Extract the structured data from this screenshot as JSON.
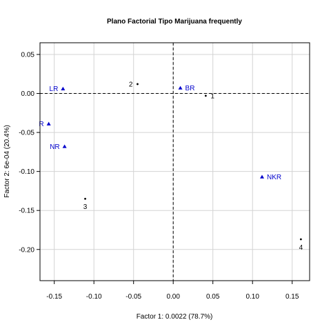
{
  "chart_data": {
    "type": "scatter",
    "title": "Plano Factorial Tipo Marijuana frequently",
    "xlabel": "Factor 1: 0.0022 (78.7%)",
    "ylabel": "Factor 2: 6e-04 (20.4%)",
    "xlim": [
      -0.168,
      0.172
    ],
    "ylim": [
      -0.24,
      0.065
    ],
    "xticks": [
      -0.15,
      -0.1,
      -0.05,
      0.0,
      0.05,
      0.1,
      0.15
    ],
    "xtick_labels": [
      "-0.15",
      "-0.10",
      "-0.05",
      "0.00",
      "0.05",
      "0.10",
      "0.15"
    ],
    "yticks": [
      0.05,
      0.0,
      -0.05,
      -0.1,
      -0.15,
      -0.2
    ],
    "ytick_labels": [
      "0.05",
      "0.00",
      "-0.05",
      "-0.10",
      "-0.15",
      "-0.20"
    ],
    "grid": true,
    "reference_lines": {
      "x": 0,
      "y": 0,
      "style": "dashed"
    },
    "colors": {
      "row_points": "#000000",
      "column_points": "#0000cc",
      "grid": "#d3d3d3"
    },
    "series": [
      {
        "marker": "dot",
        "color": "#000000",
        "points": [
          {
            "label": "1",
            "x": 0.041,
            "y": -0.003,
            "label_pos": "right"
          },
          {
            "label": "2",
            "x": -0.045,
            "y": 0.012,
            "label_pos": "left"
          },
          {
            "label": "3",
            "x": -0.111,
            "y": -0.135,
            "label_pos": "below"
          },
          {
            "label": "4",
            "x": 0.161,
            "y": -0.187,
            "label_pos": "below"
          }
        ]
      },
      {
        "marker": "triangle",
        "color": "#0000cc",
        "points": [
          {
            "label": "LR",
            "x": -0.139,
            "y": 0.006,
            "label_pos": "left"
          },
          {
            "label": "BR",
            "x": 0.009,
            "y": 0.007,
            "label_pos": "right"
          },
          {
            "label": "R",
            "x": -0.157,
            "y": -0.039,
            "label_pos": "left"
          },
          {
            "label": "NR",
            "x": -0.137,
            "y": -0.068,
            "label_pos": "left"
          },
          {
            "label": "NKR",
            "x": 0.112,
            "y": -0.107,
            "label_pos": "right"
          }
        ]
      }
    ]
  }
}
